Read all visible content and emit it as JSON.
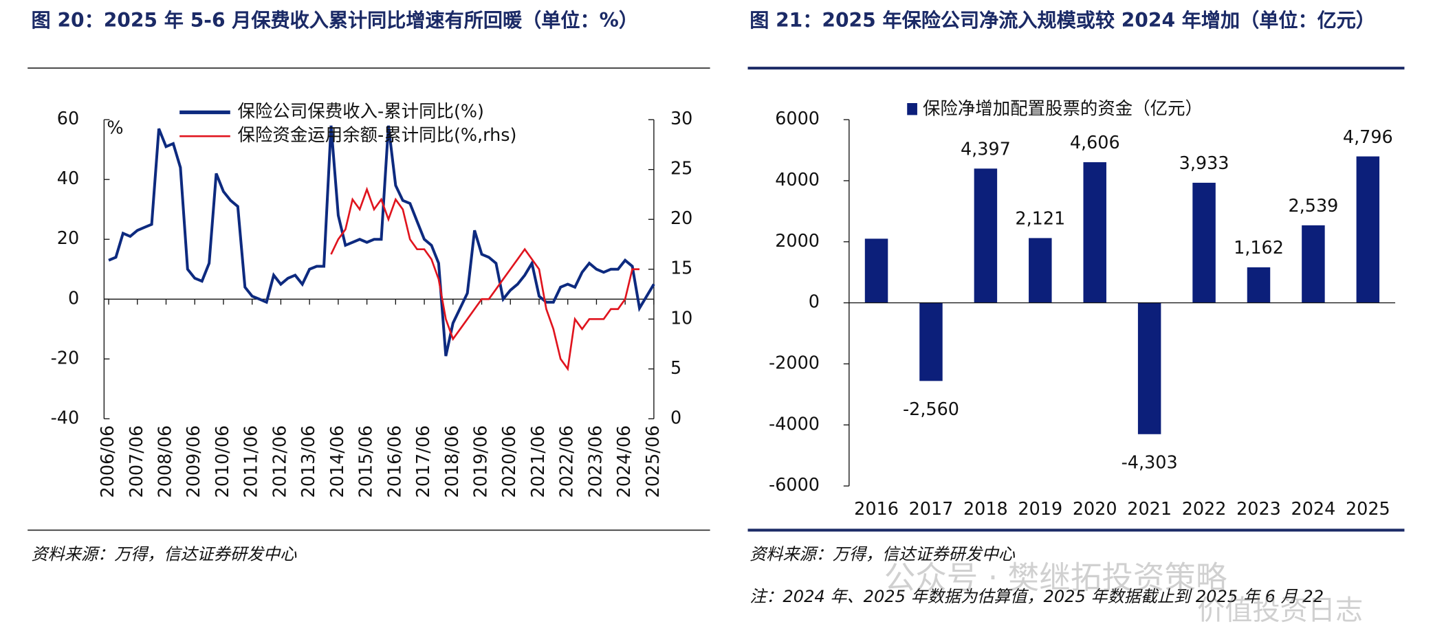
{
  "chart_data": [
    {
      "type": "line",
      "title": "图 20：2025 年 5-6 月保费收入累计同比增速有所回暖（单位：%）",
      "unit": "%",
      "source": "资料来源：万得，信达证券研发中心",
      "categories": [
        "2006/06",
        null,
        null,
        null,
        "2007/06",
        null,
        null,
        null,
        "2008/06",
        null,
        null,
        null,
        "2009/06",
        null,
        null,
        null,
        "2010/06",
        null,
        null,
        null,
        "2011/06",
        null,
        null,
        null,
        "2012/06",
        null,
        null,
        null,
        "2013/06",
        null,
        null,
        null,
        "2014/06",
        null,
        null,
        null,
        "2015/06",
        null,
        null,
        null,
        "2016/06",
        null,
        null,
        null,
        "2017/06",
        null,
        null,
        null,
        "2018/06",
        null,
        null,
        null,
        "2019/06",
        null,
        null,
        null,
        "2020/06",
        null,
        null,
        null,
        "2021/06",
        null,
        null,
        null,
        "2022/06",
        null,
        null,
        null,
        "2023/06",
        null,
        null,
        null,
        "2024/06",
        null,
        null,
        null,
        "2025/06"
      ],
      "series": [
        {
          "name": "保险公司保费收入-累计同比(%)",
          "color": "#0d2a7f",
          "values": [
            13,
            14,
            22,
            21,
            23,
            24,
            25,
            57,
            51,
            52,
            44,
            10,
            7,
            6,
            12,
            42,
            36,
            33,
            31,
            4,
            1,
            0,
            -1,
            8,
            5,
            7,
            8,
            5,
            10,
            11,
            11,
            58,
            28,
            18,
            19,
            20,
            19,
            20,
            20,
            58,
            38,
            33,
            32,
            26,
            20,
            18,
            12,
            -19,
            -8,
            -3,
            2,
            23,
            15,
            14,
            12,
            0,
            3,
            5,
            8,
            12,
            1,
            -1,
            -1,
            4,
            5,
            4,
            9,
            12,
            10,
            9,
            10,
            10,
            13,
            11,
            -3,
            1,
            5
          ]
        },
        {
          "name": "保险资金运用余额-累计同比(%,rhs)",
          "color": "#e0141e",
          "axis": "y2",
          "values": [
            null,
            null,
            null,
            null,
            null,
            null,
            null,
            null,
            null,
            null,
            null,
            null,
            null,
            null,
            null,
            null,
            null,
            null,
            null,
            null,
            null,
            null,
            null,
            null,
            null,
            null,
            null,
            null,
            null,
            null,
            null,
            16.5,
            18,
            19,
            22,
            21,
            23,
            21,
            22,
            20,
            22,
            21,
            18,
            17,
            17,
            16,
            14,
            10,
            8,
            9,
            10,
            11,
            12,
            12,
            13,
            14,
            15,
            16,
            17,
            16,
            15,
            11,
            9,
            6,
            5,
            10,
            9,
            10,
            10,
            10,
            11,
            11,
            12,
            15,
            15,
            null,
            null
          ]
        }
      ],
      "ylim": [
        -40,
        60
      ],
      "yticks": [
        -40,
        -20,
        0,
        20,
        40,
        60
      ],
      "y2lim": [
        0,
        30
      ],
      "y2ticks": [
        0,
        5,
        10,
        15,
        20,
        25,
        30
      ]
    },
    {
      "type": "bar",
      "title": "图 21：2025 年保险公司净流入规模或较 2024 年增加（单位：亿元）",
      "source": "资料来源：万得，信达证券研发中心",
      "note": "注：2024 年、2025 年数据为估算值，2025 年数据截止到 2025 年 6 月 22",
      "legend": "保险净增加配置股票的资金（亿元）",
      "color": "#0c1f7a",
      "categories": [
        "2016",
        "2017",
        "2018",
        "2019",
        "2020",
        "2021",
        "2022",
        "2023",
        "2024",
        "2025"
      ],
      "values": [
        2100,
        -2560,
        4397,
        2121,
        4606,
        -4303,
        3933,
        1162,
        2539,
        4796
      ],
      "value_labels": [
        null,
        "-2,560",
        "4,397",
        "2,121",
        "4,606",
        "-4,303",
        "3,933",
        "1,162",
        "2,539",
        "4,796"
      ],
      "ylim": [
        -6000,
        6000
      ],
      "yticks": [
        -6000,
        -4000,
        -2000,
        0,
        2000,
        4000,
        6000
      ]
    }
  ],
  "watermark": [
    "公众号 · 樊继拓投资策略",
    "价值投资日志"
  ]
}
